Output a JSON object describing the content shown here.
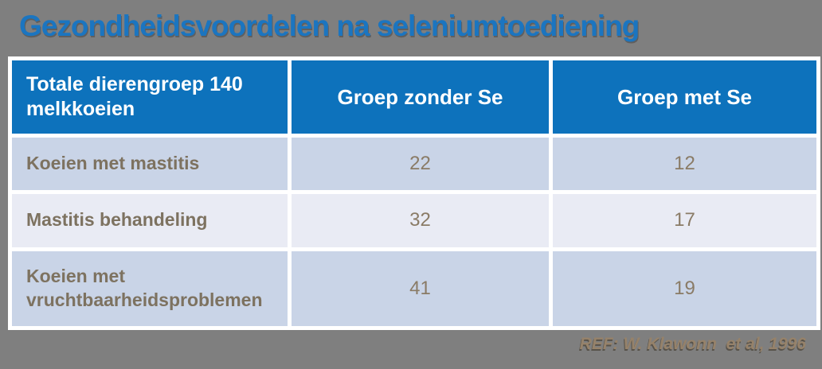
{
  "slide": {
    "title": "Gezondheidsvoordelen na seleniumtoediening",
    "reference": "REF: W. Klawonn  et al, 1996"
  },
  "table": {
    "columns": [
      "Totale dierengroep 140 melkkoeien",
      "Groep zonder Se",
      "Groep met Se"
    ],
    "rows": [
      {
        "label": "Koeien met mastitis",
        "zonder_se": "22",
        "met_se": "12"
      },
      {
        "label": "Mastitis behandeling",
        "zonder_se": "32",
        "met_se": "17"
      },
      {
        "label": "Koeien met vruchtbaarheidsproblemen",
        "zonder_se": "41",
        "met_se": "19"
      }
    ]
  },
  "colors": {
    "background": "#7F7F7F",
    "title_blue": "#1B75C0",
    "header_blue": "#0D72BC",
    "row_odd_bg": "#C9D4E7",
    "row_even_bg": "#E9EBF4",
    "row_text_brown": "#7D7260",
    "number_text_brown": "#8A7B66",
    "reference_tan": "#96826A",
    "grid_white": "#FFFFFF"
  }
}
